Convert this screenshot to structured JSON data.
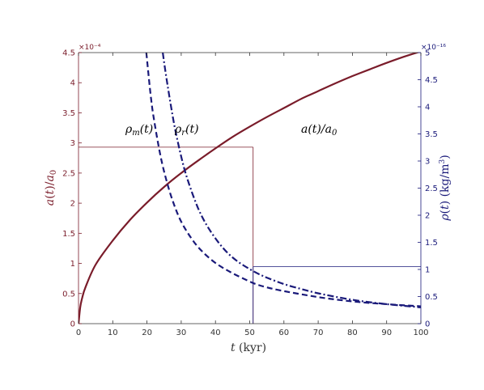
{
  "chart_data": {
    "type": "line",
    "x": {
      "label": "t  (kyr)",
      "range": [
        0,
        100
      ],
      "ticks": [
        "0",
        "10",
        "20",
        "30",
        "40",
        "50",
        "60",
        "70",
        "80",
        "90",
        "100"
      ]
    },
    "y_left": {
      "label": "a(t)/a0",
      "range": [
        0,
        4.5
      ],
      "multiplier": "×10⁻⁴",
      "color": "#7a1c2a",
      "ticks": [
        "0",
        "0.5",
        "1",
        "1.5",
        "2",
        "2.5",
        "3",
        "3.5",
        "4",
        "4.5"
      ]
    },
    "y_right": {
      "label": "ρ(t)  (kg/m³)",
      "range": [
        0,
        5
      ],
      "multiplier": "×10⁻¹⁶",
      "color": "#1a1a7a",
      "ticks": [
        "0",
        "0.5",
        "1",
        "1.5",
        "2",
        "2.5",
        "3",
        "3.5",
        "4",
        "4.5",
        "5"
      ]
    },
    "series": [
      {
        "key": "a",
        "name": "a(t)/a0",
        "axis": "left",
        "style": "solid",
        "color": "#7a1c2a",
        "x": [
          0,
          0.5,
          1,
          2,
          5,
          10,
          15,
          20,
          25,
          30,
          35,
          40,
          45,
          50,
          55,
          60,
          65,
          70,
          75,
          80,
          85,
          90,
          95,
          100
        ],
        "y": [
          0,
          0.27,
          0.41,
          0.6,
          0.98,
          1.38,
          1.72,
          2.01,
          2.27,
          2.5,
          2.71,
          2.91,
          3.1,
          3.27,
          3.43,
          3.58,
          3.73,
          3.86,
          3.99,
          4.11,
          4.22,
          4.33,
          4.43,
          4.52
        ]
      },
      {
        "key": "rho_m",
        "name": "ρm(t)",
        "axis": "right",
        "style": "dashed",
        "color": "#1a1a7a",
        "x": [
          19.8,
          21,
          22,
          24,
          26,
          28,
          30,
          33,
          36,
          40,
          45,
          51,
          55,
          60,
          70,
          80,
          90,
          100
        ],
        "y": [
          5.0,
          4.26,
          3.78,
          3.08,
          2.57,
          2.18,
          1.88,
          1.57,
          1.34,
          1.12,
          0.93,
          0.75,
          0.67,
          0.6,
          0.49,
          0.41,
          0.36,
          0.32
        ]
      },
      {
        "key": "rho_r",
        "name": "ρr(t)",
        "axis": "right",
        "style": "dashdot",
        "color": "#1a1a7a",
        "x": [
          24.6,
          26,
          28,
          30,
          32,
          35,
          38,
          42,
          46,
          51,
          55,
          60,
          65,
          70,
          80,
          90,
          100
        ],
        "y": [
          5.0,
          4.4,
          3.66,
          3.08,
          2.63,
          2.12,
          1.76,
          1.41,
          1.17,
          0.97,
          0.85,
          0.73,
          0.64,
          0.56,
          0.44,
          0.36,
          0.3
        ]
      }
    ],
    "guides": [
      {
        "type": "hline",
        "axis": "left",
        "y": 2.93,
        "x_from": 0,
        "x_to": 51,
        "color": "#7a1c2a"
      },
      {
        "type": "vline",
        "x": 51,
        "y_from_left": 0,
        "y_to_left": 2.93,
        "color": "#7a1c2a"
      },
      {
        "type": "hline",
        "axis": "right",
        "y": 1.05,
        "x_from": 51,
        "x_to": 100,
        "color": "#1a1a7a"
      },
      {
        "type": "vline",
        "x": 51,
        "y_from_right": 0,
        "y_to_right": 1.05,
        "color": "#1a1a7a"
      }
    ],
    "annotations": [
      {
        "text": "ρm(t)",
        "x": 20,
        "y_left": 3.15
      },
      {
        "text": "ρr(t)",
        "x": 35,
        "y_left": 3.15
      },
      {
        "text": "a(t)/a0",
        "x": 70,
        "y_left": 3.15
      }
    ],
    "grid": false,
    "legend": "none"
  }
}
